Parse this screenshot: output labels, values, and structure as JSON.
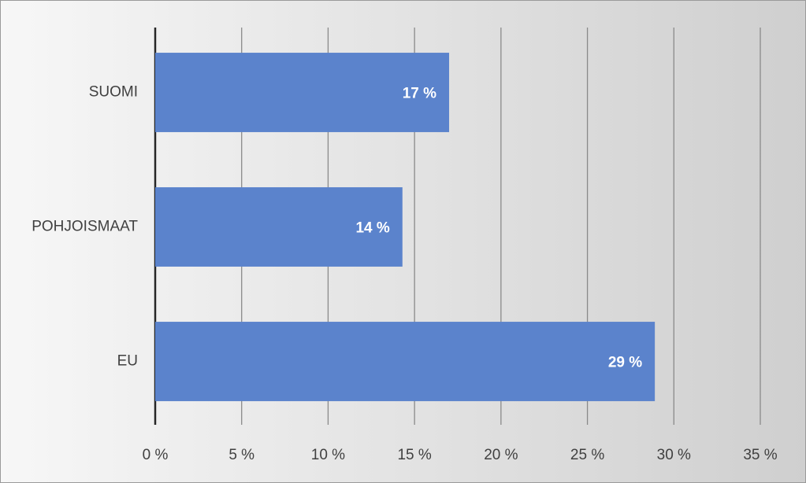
{
  "chart_data": {
    "type": "bar",
    "orientation": "horizontal",
    "categories": [
      "SUOMI",
      "POHJOISMAAT",
      "EU"
    ],
    "values": [
      17.0,
      14.3,
      28.9
    ],
    "value_labels": [
      "17 %",
      "14 %",
      "29 %"
    ],
    "color": "#5b83cc",
    "xlim": [
      0,
      35
    ],
    "xticks": [
      {
        "value": 0,
        "label": "0 %"
      },
      {
        "value": 5,
        "label": "5 %"
      },
      {
        "value": 10,
        "label": "10 %"
      },
      {
        "value": 15,
        "label": "15 %"
      },
      {
        "value": 20,
        "label": "20 %"
      },
      {
        "value": 25,
        "label": "25 %"
      },
      {
        "value": 30,
        "label": "30 %"
      },
      {
        "value": 35,
        "label": "35 %"
      }
    ],
    "grid": true
  }
}
